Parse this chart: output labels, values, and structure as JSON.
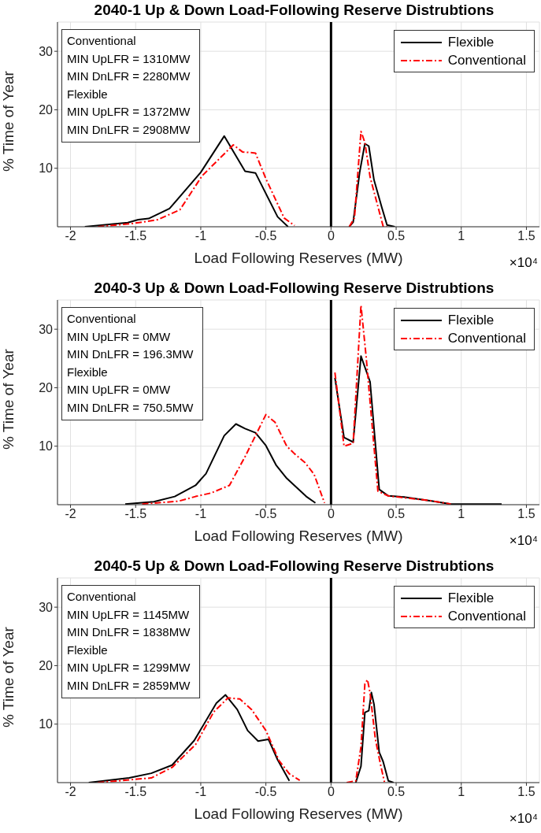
{
  "chart_data": [
    {
      "type": "line",
      "title": "2040-1 Up & Down Load-Following Reserve Distrubtions",
      "xlabel": "Load Following Reserves (MW)",
      "ylabel": "% Time of Year",
      "xlim": [
        -2.1,
        1.6
      ],
      "ylim": [
        0,
        35
      ],
      "xticks": [
        -2,
        -1.5,
        -1,
        -0.5,
        0,
        0.5,
        1,
        1.5
      ],
      "yticks": [
        10,
        20,
        30
      ],
      "grid": true,
      "legend": "top right",
      "ref_lines": [
        {
          "axis": "x",
          "value": 0,
          "color": "#000000"
        }
      ],
      "annotations": [
        "Conventional",
        "MIN UpLFR = 1310MW",
        "MIN DnLFR = 2280MW",
        "Flexible",
        "MIN UpLFR = 1372MW",
        "MIN DnLFR = 2908MW",
        "×10⁴"
      ],
      "series": [
        {
          "name": "Flexible",
          "color": "#000000",
          "line_style": "solid",
          "x": [
            -1.89,
            -1.56,
            -1.48,
            -1.4,
            -1.24,
            -1.0,
            -0.82,
            -0.66,
            -0.58,
            -0.41,
            -0.33,
            null,
            0.14,
            0.17,
            0.22,
            0.26,
            0.29,
            0.33,
            0.39,
            0.43,
            0.49
          ],
          "values": [
            0,
            0.7,
            1.2,
            1.4,
            3.1,
            9.3,
            15.5,
            9.5,
            9.2,
            1.7,
            0,
            null,
            0,
            0.8,
            9.3,
            14.2,
            13.8,
            8,
            3.3,
            0.3,
            0
          ]
        },
        {
          "name": "Conventional",
          "color": "#ff0000",
          "line_style": "dashed",
          "x": [
            -1.79,
            -1.51,
            -1.33,
            -1.16,
            -0.99,
            -0.75,
            -0.68,
            -0.58,
            -0.5,
            -0.36,
            -0.28,
            null,
            0.14,
            0.18,
            0.23,
            0.26,
            0.3,
            0.35,
            0.4,
            0.43
          ],
          "values": [
            0,
            0.6,
            1.2,
            2.9,
            8.7,
            14,
            12.8,
            12.6,
            8.2,
            1.5,
            0.2,
            null,
            0,
            1.5,
            16.3,
            14.4,
            8.5,
            4.3,
            0.1,
            0
          ]
        }
      ]
    },
    {
      "type": "line",
      "title": "2040-3 Up & Down Load-Following Reserve Distrubtions",
      "xlabel": "Load Following Reserves (MW)",
      "ylabel": "% Time of Year",
      "xlim": [
        -2.1,
        1.6
      ],
      "ylim": [
        0,
        35
      ],
      "xticks": [
        -2,
        -1.5,
        -1,
        -0.5,
        0,
        0.5,
        1,
        1.5
      ],
      "yticks": [
        10,
        20,
        30
      ],
      "grid": true,
      "legend": "top right",
      "ref_lines": [
        {
          "axis": "x",
          "value": 0,
          "color": "#000000"
        }
      ],
      "annotations": [
        "Conventional",
        "MIN UpLFR = 0MW",
        "MIN DnLFR = 196.3MW",
        "Flexible",
        "MIN UpLFR = 0MW",
        "MIN DnLFR = 750.5MW",
        "×10⁴"
      ],
      "series": [
        {
          "name": "Flexible",
          "color": "#000000",
          "line_style": "solid",
          "x": [
            -1.58,
            -1.36,
            -1.2,
            -1.04,
            -0.96,
            -0.82,
            -0.73,
            -0.66,
            -0.58,
            -0.5,
            -0.42,
            -0.34,
            -0.19,
            -0.12,
            null,
            0.03,
            0.1,
            0.17,
            0.23,
            0.3,
            0.37,
            0.44,
            0.56,
            0.78,
            0.92,
            1.31
          ],
          "values": [
            0.1,
            0.5,
            1.4,
            3.3,
            5.3,
            11.8,
            13.8,
            13,
            12.3,
            10.1,
            6.7,
            4.5,
            1.4,
            0.3,
            null,
            21.7,
            11.5,
            10.7,
            25.4,
            21,
            2.6,
            1.5,
            1.3,
            0.6,
            0.1,
            0.1
          ]
        },
        {
          "name": "Conventional",
          "color": "#ff0000",
          "line_style": "dashed",
          "x": [
            -1.45,
            -1.17,
            -1.04,
            -0.92,
            -0.78,
            -0.66,
            -0.5,
            -0.43,
            -0.34,
            -0.28,
            -0.2,
            -0.13,
            -0.05,
            null,
            0.03,
            0.1,
            0.17,
            0.23,
            0.27,
            0.36,
            0.44,
            0.76,
            0.92
          ],
          "values": [
            0.1,
            0.6,
            1.4,
            2,
            3.3,
            8.2,
            15.4,
            14.1,
            10,
            8.7,
            7.2,
            5.2,
            0.3,
            null,
            22.6,
            10,
            10.5,
            34.1,
            25.2,
            2.3,
            1.5,
            0.7,
            0.1
          ]
        }
      ]
    },
    {
      "type": "line",
      "title": "2040-5 Up & Down Load-Following Reserve Distrubtions",
      "xlabel": "Load Following Reserves (MW)",
      "ylabel": "% Time of Year",
      "xlim": [
        -2.1,
        1.6
      ],
      "ylim": [
        0,
        35
      ],
      "xticks": [
        -2,
        -1.5,
        -1,
        -0.5,
        0,
        0.5,
        1,
        1.5
      ],
      "yticks": [
        10,
        20,
        30
      ],
      "grid": true,
      "legend": "top right",
      "ref_lines": [
        {
          "axis": "x",
          "value": 0,
          "color": "#000000"
        }
      ],
      "annotations": [
        "Conventional",
        "MIN UpLFR = 1145MW",
        "MIN DnLFR = 1838MW",
        "Flexible",
        "MIN UpLFR = 1299MW",
        "MIN DnLFR = 2859MW",
        "×10⁴"
      ],
      "series": [
        {
          "name": "Flexible",
          "color": "#000000",
          "line_style": "solid",
          "x": [
            -1.86,
            -1.55,
            -1.38,
            -1.22,
            -1.05,
            -0.88,
            -0.81,
            -0.72,
            -0.64,
            -0.56,
            -0.48,
            -0.41,
            -0.32,
            null,
            0.19,
            0.23,
            0.26,
            0.29,
            0.31,
            0.33,
            0.37,
            0.4,
            0.44,
            0.48
          ],
          "values": [
            0,
            0.8,
            1.6,
            3,
            7.2,
            13.6,
            15,
            12.5,
            8.9,
            7.1,
            7.4,
            3.9,
            0.3,
            null,
            0,
            2.8,
            12,
            12.3,
            15.4,
            13.4,
            5.2,
            3.6,
            0.3,
            0
          ]
        },
        {
          "name": "Conventional",
          "color": "#ff0000",
          "line_style": "dashed",
          "x": [
            -1.79,
            -1.38,
            -1.22,
            -1.04,
            -0.9,
            -0.79,
            -0.7,
            -0.61,
            -0.5,
            -0.4,
            -0.32,
            -0.24,
            null,
            0.12,
            0.19,
            0.23,
            0.26,
            0.28,
            0.3,
            0.34,
            0.38,
            0.41
          ],
          "values": [
            0,
            0.8,
            2.6,
            6.5,
            12.1,
            14.5,
            14.3,
            12.5,
            8.9,
            3.8,
            1.5,
            0.4,
            null,
            0,
            0.3,
            6.1,
            16.9,
            17.6,
            15.3,
            7.5,
            3.1,
            0.1
          ]
        }
      ]
    }
  ]
}
